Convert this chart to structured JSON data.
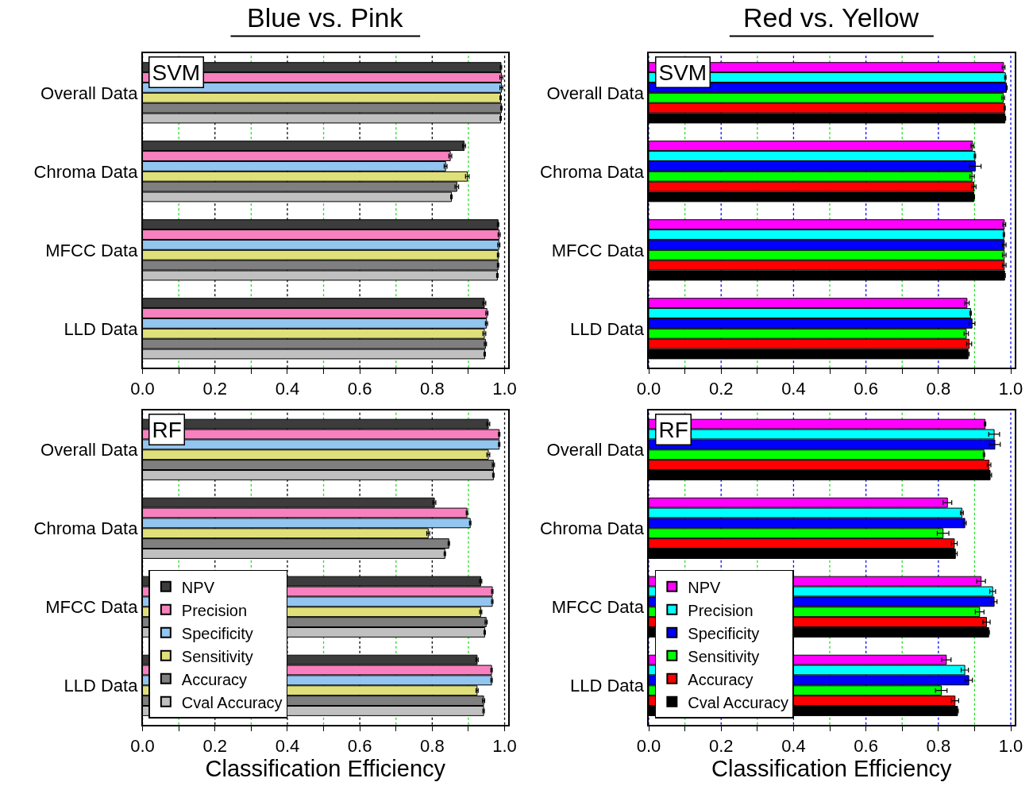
{
  "chart_data": [
    {
      "type": "bar",
      "orientation": "horizontal",
      "title": "Blue vs. Pink",
      "annotations": [
        "SVM"
      ],
      "grid": "x",
      "legend": false,
      "categories": [
        "Overall Data",
        "Chroma Data",
        "MFCC Data",
        "LLD Data"
      ],
      "xlim": [
        0,
        1.01
      ],
      "xticks": [
        {
          "value": 0,
          "label": "0.0"
        },
        {
          "value": 0.1,
          "label": null
        },
        0.2,
        {
          "value": 0.3,
          "label": null
        },
        0.4,
        {
          "value": 0.5,
          "label": null
        },
        0.6,
        {
          "value": 0.7,
          "label": null
        },
        0.8,
        {
          "value": 0.9,
          "label": null
        },
        {
          "value": 1,
          "label": "1.0"
        }
      ],
      "series": [
        {
          "color": "#3c3c3c",
          "values": [
            0.99,
            0.888,
            0.982,
            0.944
          ],
          "errors": [
            0.002,
            0.004,
            0.002,
            0.004
          ]
        },
        {
          "color": "#f781bf",
          "values": [
            0.991,
            0.85,
            0.985,
            0.951
          ],
          "errors": [
            0.004,
            0.004,
            0.003,
            0.003
          ]
        },
        {
          "color": "#92c5ef",
          "values": [
            0.991,
            0.837,
            0.984,
            0.95
          ],
          "errors": [
            0.004,
            0.004,
            0.003,
            0.003
          ]
        },
        {
          "color": "#e0e07a",
          "values": [
            0.989,
            0.897,
            0.982,
            0.944
          ],
          "errors": [
            0.002,
            0.005,
            0.002,
            0.004
          ]
        },
        {
          "color": "#7f7f7f",
          "values": [
            0.991,
            0.868,
            0.982,
            0.947
          ],
          "errors": [
            0.002,
            0.005,
            0.002,
            0.003
          ]
        },
        {
          "color": "#c0c0c0",
          "values": [
            0.989,
            0.853,
            0.98,
            0.945
          ],
          "errors": [
            0.002,
            0.002,
            0.002,
            0.002
          ]
        }
      ]
    },
    {
      "type": "bar",
      "orientation": "horizontal",
      "title": "Red vs. Yellow",
      "annotations": [
        "SVM"
      ],
      "grid": "x",
      "legend": false,
      "categories": [
        "Overall Data",
        "Chroma Data",
        "MFCC Data",
        "LLD Data"
      ],
      "xlim": [
        0,
        1.01
      ],
      "xticks": [
        {
          "value": 0,
          "label": "0.0"
        },
        {
          "value": 0.1,
          "label": null
        },
        0.2,
        {
          "value": 0.3,
          "label": null
        },
        0.4,
        {
          "value": 0.5,
          "label": null
        },
        0.6,
        {
          "value": 0.7,
          "label": null
        },
        0.8,
        {
          "value": 0.9,
          "label": null
        },
        {
          "value": 1,
          "label": "1.0"
        }
      ],
      "series": [
        {
          "color": "#ff00ff",
          "values": [
            0.98,
            0.894,
            0.982,
            0.879
          ],
          "errors": [
            0.004,
            0.004,
            0.004,
            0.006
          ]
        },
        {
          "color": "#00ffff",
          "values": [
            0.985,
            0.901,
            0.981,
            0.889
          ],
          "errors": [
            0.002,
            0.002,
            0.002,
            0.002
          ]
        },
        {
          "color": "#0000ff",
          "values": [
            0.988,
            0.902,
            0.982,
            0.893
          ],
          "errors": [
            0.002,
            0.016,
            0.005,
            0.008
          ]
        },
        {
          "color": "#00ff00",
          "values": [
            0.979,
            0.893,
            0.982,
            0.877
          ],
          "errors": [
            0.004,
            0.006,
            0.005,
            0.006
          ]
        },
        {
          "color": "#ff0000",
          "values": [
            0.983,
            0.898,
            0.982,
            0.885
          ],
          "errors": [
            0.002,
            0.006,
            0.005,
            0.007
          ]
        },
        {
          "color": "#000000",
          "values": [
            0.984,
            0.898,
            0.983,
            0.882
          ],
          "errors": [
            0.002,
            0.002,
            0.002,
            0.003
          ]
        }
      ]
    },
    {
      "type": "bar",
      "orientation": "horizontal",
      "annotations": [
        "RF"
      ],
      "xlabel": "Classification Efficiency",
      "grid": "x",
      "legend": "bottom left",
      "categories": [
        "Overall Data",
        "Chroma Data",
        "MFCC Data",
        "LLD Data"
      ],
      "xlim": [
        0,
        1.01
      ],
      "xticks": [
        {
          "value": 0,
          "label": "0.0"
        },
        {
          "value": 0.1,
          "label": null
        },
        0.2,
        {
          "value": 0.3,
          "label": null
        },
        0.4,
        {
          "value": 0.5,
          "label": null
        },
        0.6,
        {
          "value": 0.7,
          "label": null
        },
        0.8,
        {
          "value": 0.9,
          "label": null
        },
        {
          "value": 1,
          "label": "1.0"
        }
      ],
      "series": [
        {
          "name": "NPV",
          "color": "#3c3c3c",
          "values": [
            0.955,
            0.806,
            0.934,
            0.924
          ],
          "errors": [
            0.004,
            0.004,
            0.003,
            0.003
          ]
        },
        {
          "name": "Precision",
          "color": "#f781bf",
          "values": [
            0.985,
            0.896,
            0.966,
            0.964
          ],
          "errors": [
            0.002,
            0.002,
            0.002,
            0.002
          ]
        },
        {
          "name": "Specificity",
          "color": "#92c5ef",
          "values": [
            0.985,
            0.905,
            0.966,
            0.964
          ],
          "errors": [
            0.002,
            0.002,
            0.002,
            0.002
          ]
        },
        {
          "name": "Sensitivity",
          "color": "#e0e07a",
          "values": [
            0.955,
            0.789,
            0.934,
            0.924
          ],
          "errors": [
            0.004,
            0.004,
            0.003,
            0.003
          ]
        },
        {
          "name": "Accuracy",
          "color": "#7f7f7f",
          "values": [
            0.969,
            0.846,
            0.949,
            0.942
          ],
          "errors": [
            0.003,
            0.002,
            0.003,
            0.003
          ]
        },
        {
          "name": "Cval Accuracy",
          "color": "#c0c0c0",
          "values": [
            0.969,
            0.835,
            0.945,
            0.942
          ],
          "errors": [
            0.002,
            0.002,
            0.002,
            0.002
          ]
        }
      ]
    },
    {
      "type": "bar",
      "orientation": "horizontal",
      "annotations": [
        "RF"
      ],
      "xlabel": "Classification Efficiency",
      "grid": "x",
      "legend": "bottom left",
      "categories": [
        "Overall Data",
        "Chroma Data",
        "MFCC Data",
        "LLD Data"
      ],
      "xlim": [
        0,
        1.01
      ],
      "xticks": [
        {
          "value": 0,
          "label": "0.0"
        },
        {
          "value": 0.1,
          "label": null
        },
        0.2,
        {
          "value": 0.3,
          "label": null
        },
        0.4,
        {
          "value": 0.5,
          "label": null
        },
        0.6,
        {
          "value": 0.7,
          "label": null
        },
        0.8,
        {
          "value": 0.9,
          "label": null
        },
        {
          "value": 1,
          "label": "1.0"
        }
      ],
      "series": [
        {
          "name": "NPV",
          "color": "#ff00ff",
          "values": [
            0.929,
            0.825,
            0.918,
            0.822
          ],
          "errors": [
            0.002,
            0.012,
            0.012,
            0.013
          ]
        },
        {
          "name": "Precision",
          "color": "#00ffff",
          "values": [
            0.954,
            0.865,
            0.95,
            0.873
          ],
          "errors": [
            0.015,
            0.004,
            0.008,
            0.01
          ]
        },
        {
          "name": "Specificity",
          "color": "#0000ff",
          "values": [
            0.956,
            0.873,
            0.954,
            0.884
          ],
          "errors": [
            0.015,
            0.004,
            0.008,
            0.01
          ]
        },
        {
          "name": "Sensitivity",
          "color": "#00ff00",
          "values": [
            0.926,
            0.813,
            0.914,
            0.808
          ],
          "errors": [
            0.002,
            0.016,
            0.012,
            0.016
          ]
        },
        {
          "name": "Accuracy",
          "color": "#ff0000",
          "values": [
            0.94,
            0.844,
            0.933,
            0.846
          ],
          "errors": [
            0.005,
            0.008,
            0.01,
            0.01
          ]
        },
        {
          "name": "Cval Accuracy",
          "color": "#000000",
          "values": [
            0.943,
            0.847,
            0.939,
            0.853
          ],
          "errors": [
            0.004,
            0.005,
            0.002,
            0.002
          ]
        }
      ]
    }
  ]
}
